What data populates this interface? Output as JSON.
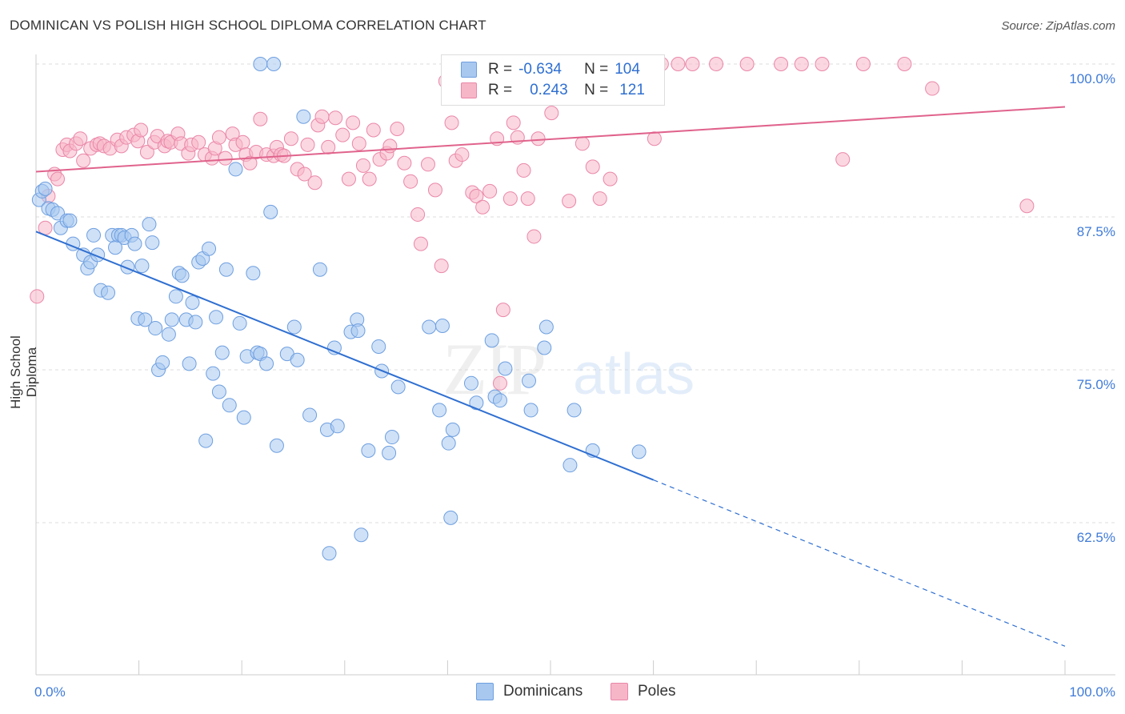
{
  "title": "DOMINICAN VS POLISH HIGH SCHOOL DIPLOMA CORRELATION CHART",
  "source": "Source: ZipAtlas.com",
  "watermark": {
    "zip": "ZIP",
    "atlas": "atlas"
  },
  "legend_top": {
    "rows": [
      {
        "r_label": "R =",
        "r_value": "-0.634",
        "n_label": "N =",
        "n_value": "104",
        "color": "#a8c8f0",
        "border": "#6e9fe0"
      },
      {
        "r_label": "R =",
        "r_value": "0.243",
        "n_label": "N =",
        "n_value": "121",
        "color": "#f7b6c8",
        "border": "#ea87a8"
      }
    ]
  },
  "legend_bottom": [
    {
      "label": "Dominicans",
      "color": "#a8c8f0",
      "border": "#6e9fe0"
    },
    {
      "label": "Poles",
      "color": "#f7b6c8",
      "border": "#ea87a8"
    }
  ],
  "chart_data": {
    "type": "scatter",
    "title": "DOMINICAN VS POLISH HIGH SCHOOL DIPLOMA CORRELATION CHART",
    "xlabel": "",
    "ylabel": "High School Diploma",
    "xlim": [
      0,
      100
    ],
    "ylim": [
      50.5,
      101.5
    ],
    "x_tick_labels": [
      "0.0%",
      "100.0%"
    ],
    "y_ticks": [
      62.5,
      75.0,
      87.5,
      100.0
    ],
    "y_tick_labels": [
      "62.5%",
      "75.0%",
      "87.5%",
      "100.0%"
    ],
    "grid": true,
    "legend": "top-center",
    "series": [
      {
        "name": "Dominicans",
        "color": "#a8c8f0",
        "edge": "#6e9fe0",
        "trend": {
          "x0": 0,
          "y0": 86.3,
          "x1": 60,
          "y1": 66.0,
          "dash_to_x": 100,
          "dash_to_y": 52.4,
          "color": "#2f6fd1"
        },
        "points": [
          [
            0.3,
            88.9
          ],
          [
            0.6,
            89.6
          ],
          [
            0.9,
            89.8
          ],
          [
            1.2,
            88.2
          ],
          [
            1.6,
            88.1
          ],
          [
            2.1,
            87.8
          ],
          [
            2.4,
            86.6
          ],
          [
            3.0,
            87.2
          ],
          [
            3.3,
            87.2
          ],
          [
            3.6,
            85.3
          ],
          [
            4.6,
            84.4
          ],
          [
            5.0,
            83.3
          ],
          [
            5.3,
            83.8
          ],
          [
            5.6,
            86.0
          ],
          [
            6.0,
            84.4
          ],
          [
            6.3,
            81.5
          ],
          [
            7.0,
            81.3
          ],
          [
            7.4,
            86.0
          ],
          [
            7.7,
            85.0
          ],
          [
            8.0,
            86.0
          ],
          [
            8.3,
            86.0
          ],
          [
            8.6,
            85.8
          ],
          [
            8.9,
            83.4
          ],
          [
            9.3,
            86.0
          ],
          [
            9.6,
            85.3
          ],
          [
            9.9,
            79.2
          ],
          [
            10.3,
            83.5
          ],
          [
            10.6,
            79.1
          ],
          [
            11.0,
            86.9
          ],
          [
            11.3,
            85.4
          ],
          [
            11.6,
            78.4
          ],
          [
            11.9,
            75.0
          ],
          [
            12.3,
            75.6
          ],
          [
            12.9,
            77.9
          ],
          [
            13.2,
            79.1
          ],
          [
            13.6,
            81.0
          ],
          [
            13.9,
            82.9
          ],
          [
            14.2,
            82.7
          ],
          [
            14.6,
            79.1
          ],
          [
            14.9,
            75.5
          ],
          [
            15.2,
            80.5
          ],
          [
            15.5,
            78.9
          ],
          [
            15.8,
            83.8
          ],
          [
            16.2,
            84.1
          ],
          [
            16.5,
            69.2
          ],
          [
            16.8,
            84.9
          ],
          [
            17.2,
            74.7
          ],
          [
            17.5,
            79.3
          ],
          [
            17.8,
            73.2
          ],
          [
            18.1,
            76.4
          ],
          [
            18.5,
            83.2
          ],
          [
            18.8,
            72.1
          ],
          [
            19.4,
            91.4
          ],
          [
            19.8,
            78.8
          ],
          [
            20.2,
            71.1
          ],
          [
            20.5,
            76.1
          ],
          [
            21.1,
            82.9
          ],
          [
            21.5,
            76.4
          ],
          [
            21.8,
            76.3
          ],
          [
            22.4,
            75.5
          ],
          [
            21.8,
            100.0
          ],
          [
            23.1,
            100.0
          ],
          [
            22.8,
            87.9
          ],
          [
            23.4,
            68.8
          ],
          [
            24.4,
            76.3
          ],
          [
            25.4,
            75.8
          ],
          [
            26.0,
            95.7
          ],
          [
            25.1,
            78.5
          ],
          [
            26.6,
            71.3
          ],
          [
            27.6,
            83.2
          ],
          [
            28.3,
            70.1
          ],
          [
            29.0,
            76.8
          ],
          [
            29.3,
            70.4
          ],
          [
            30.6,
            78.1
          ],
          [
            31.2,
            79.1
          ],
          [
            31.3,
            78.2
          ],
          [
            31.6,
            61.5
          ],
          [
            32.3,
            68.4
          ],
          [
            33.3,
            76.9
          ],
          [
            33.6,
            74.9
          ],
          [
            34.3,
            68.2
          ],
          [
            34.6,
            69.5
          ],
          [
            35.2,
            73.6
          ],
          [
            28.5,
            60.0
          ],
          [
            38.2,
            78.5
          ],
          [
            39.5,
            78.6
          ],
          [
            39.2,
            71.7
          ],
          [
            40.3,
            62.9
          ],
          [
            40.1,
            69.0
          ],
          [
            40.5,
            70.1
          ],
          [
            42.8,
            72.3
          ],
          [
            42.3,
            73.9
          ],
          [
            44.3,
            77.4
          ],
          [
            44.6,
            72.8
          ],
          [
            45.1,
            72.5
          ],
          [
            48.1,
            71.7
          ],
          [
            49.6,
            78.5
          ],
          [
            49.4,
            76.8
          ],
          [
            52.3,
            71.7
          ],
          [
            51.9,
            67.2
          ],
          [
            54.1,
            68.4
          ],
          [
            58.6,
            68.3
          ],
          [
            47.9,
            74.1
          ],
          [
            45.6,
            75.1
          ]
        ]
      },
      {
        "name": "Poles",
        "color": "#f7b6c8",
        "edge": "#ea87a8",
        "trend": {
          "x0": 0,
          "y0": 91.2,
          "x1": 100,
          "y1": 96.5,
          "color": "#e0638c"
        },
        "points": [
          [
            0.1,
            81.0
          ],
          [
            0.9,
            86.6
          ],
          [
            1.2,
            89.2
          ],
          [
            1.8,
            91.0
          ],
          [
            2.1,
            90.6
          ],
          [
            2.6,
            93.0
          ],
          [
            3.0,
            93.4
          ],
          [
            3.3,
            92.9
          ],
          [
            3.9,
            93.5
          ],
          [
            4.3,
            93.9
          ],
          [
            4.6,
            92.1
          ],
          [
            5.3,
            93.1
          ],
          [
            5.9,
            93.4
          ],
          [
            6.2,
            93.5
          ],
          [
            6.6,
            93.3
          ],
          [
            7.2,
            93.1
          ],
          [
            7.9,
            93.8
          ],
          [
            8.3,
            93.3
          ],
          [
            8.8,
            94.0
          ],
          [
            9.5,
            94.2
          ],
          [
            9.9,
            93.7
          ],
          [
            10.2,
            94.6
          ],
          [
            10.8,
            92.8
          ],
          [
            11.5,
            93.6
          ],
          [
            11.8,
            94.1
          ],
          [
            12.5,
            93.3
          ],
          [
            12.8,
            93.7
          ],
          [
            13.1,
            93.6
          ],
          [
            13.8,
            94.3
          ],
          [
            14.1,
            93.5
          ],
          [
            14.8,
            92.7
          ],
          [
            15.1,
            93.4
          ],
          [
            15.8,
            93.6
          ],
          [
            16.4,
            92.6
          ],
          [
            17.1,
            92.3
          ],
          [
            17.4,
            93.1
          ],
          [
            17.8,
            94.0
          ],
          [
            18.4,
            92.3
          ],
          [
            19.1,
            94.3
          ],
          [
            19.4,
            93.4
          ],
          [
            20.1,
            93.6
          ],
          [
            20.4,
            92.6
          ],
          [
            20.8,
            91.9
          ],
          [
            21.4,
            92.8
          ],
          [
            21.8,
            95.5
          ],
          [
            22.4,
            92.6
          ],
          [
            23.1,
            92.5
          ],
          [
            23.4,
            93.2
          ],
          [
            23.8,
            92.6
          ],
          [
            24.1,
            92.5
          ],
          [
            24.8,
            93.9
          ],
          [
            25.4,
            91.4
          ],
          [
            26.1,
            91.0
          ],
          [
            26.4,
            93.4
          ],
          [
            27.1,
            90.3
          ],
          [
            27.4,
            95.0
          ],
          [
            27.8,
            95.7
          ],
          [
            28.4,
            93.2
          ],
          [
            29.1,
            95.6
          ],
          [
            29.8,
            94.2
          ],
          [
            30.4,
            90.6
          ],
          [
            30.8,
            95.2
          ],
          [
            31.4,
            93.5
          ],
          [
            31.8,
            91.7
          ],
          [
            32.4,
            90.6
          ],
          [
            32.8,
            94.6
          ],
          [
            33.4,
            92.2
          ],
          [
            34.1,
            92.7
          ],
          [
            34.4,
            93.3
          ],
          [
            35.1,
            94.7
          ],
          [
            35.8,
            91.9
          ],
          [
            36.4,
            90.4
          ],
          [
            37.1,
            87.7
          ],
          [
            37.4,
            85.3
          ],
          [
            38.1,
            91.8
          ],
          [
            38.8,
            89.7
          ],
          [
            39.4,
            83.5
          ],
          [
            39.8,
            98.6
          ],
          [
            40.4,
            95.2
          ],
          [
            40.8,
            92.1
          ],
          [
            41.4,
            92.6
          ],
          [
            42.1,
            100.0
          ],
          [
            42.4,
            89.5
          ],
          [
            42.8,
            89.2
          ],
          [
            43.4,
            88.3
          ],
          [
            44.1,
            89.6
          ],
          [
            44.8,
            93.9
          ],
          [
            45.1,
            73.9
          ],
          [
            45.4,
            79.9
          ],
          [
            46.1,
            89.0
          ],
          [
            46.4,
            95.2
          ],
          [
            46.8,
            94.0
          ],
          [
            47.4,
            91.3
          ],
          [
            47.8,
            89.0
          ],
          [
            48.4,
            85.9
          ],
          [
            48.8,
            93.9
          ],
          [
            49.4,
            99.2
          ],
          [
            49.8,
            100.0
          ],
          [
            50.1,
            96.0
          ],
          [
            51.4,
            100.0
          ],
          [
            51.8,
            88.8
          ],
          [
            52.4,
            100.0
          ],
          [
            53.1,
            93.5
          ],
          [
            54.1,
            91.6
          ],
          [
            54.8,
            89.0
          ],
          [
            55.8,
            90.6
          ],
          [
            57.1,
            100.0
          ],
          [
            60.1,
            93.9
          ],
          [
            60.8,
            100.0
          ],
          [
            62.4,
            100.0
          ],
          [
            63.8,
            100.0
          ],
          [
            66.1,
            100.0
          ],
          [
            69.1,
            100.0
          ],
          [
            72.4,
            100.0
          ],
          [
            74.4,
            100.0
          ],
          [
            76.4,
            100.0
          ],
          [
            78.4,
            92.2
          ],
          [
            80.4,
            100.0
          ],
          [
            84.4,
            100.0
          ],
          [
            87.1,
            98.0
          ],
          [
            96.3,
            88.4
          ]
        ]
      }
    ]
  }
}
